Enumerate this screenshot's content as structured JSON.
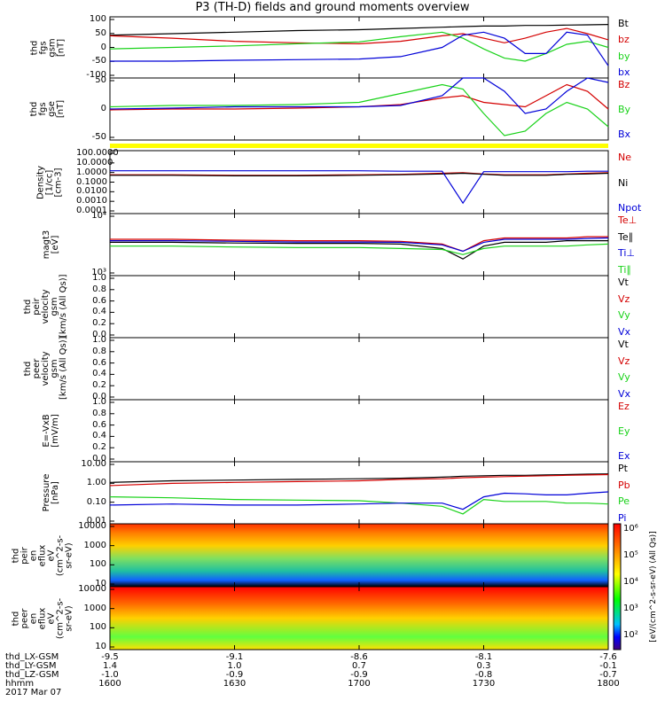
{
  "title": "P3 (TH-D) fields and ground moments overview",
  "x_axis": {
    "ticks_x": [
      1600,
      1630,
      1700,
      1730,
      1800
    ],
    "rows": [
      {
        "label": "thd_LX-GSM",
        "values": [
          "-9.5",
          "-9.1",
          "-8.6",
          "-8.1",
          "-7.6"
        ]
      },
      {
        "label": "thd_LY-GSM",
        "values": [
          "1.4",
          "1.0",
          "0.7",
          "0.3",
          "-0.1"
        ]
      },
      {
        "label": "thd_LZ-GSM",
        "values": [
          "-1.0",
          "-0.9",
          "-0.9",
          "-0.8",
          "-0.7"
        ]
      },
      {
        "label": "hhmm",
        "values": [
          "1600",
          "1630",
          "1700",
          "1730",
          "1800"
        ]
      }
    ],
    "date": "2017 Mar 07"
  },
  "colors": {
    "black": "#000000",
    "red": "#d40000",
    "green": "#19d219",
    "blue": "#0000d8",
    "yellow": "#ffff00"
  },
  "panels": [
    {
      "id": "fgs_gsm",
      "ylabel": "thd\nfgs\ngsm\n[nT]",
      "ticks": [
        "100",
        "50",
        "0",
        "-50",
        "-100"
      ],
      "legend": [
        {
          "text": "Bt",
          "color": "black"
        },
        {
          "text": "bz",
          "color": "red"
        },
        {
          "text": "by",
          "color": "green"
        },
        {
          "text": "bx",
          "color": "blue"
        }
      ]
    },
    {
      "id": "fgs_gse",
      "ylabel": "thd\nfgs\ngse\n[nT]",
      "ticks": [
        "50",
        "0",
        "-50"
      ],
      "legend": [
        {
          "text": "Bz",
          "color": "red"
        },
        {
          "text": "By",
          "color": "green"
        },
        {
          "text": "Bx",
          "color": "blue"
        }
      ]
    },
    {
      "id": "density",
      "ylabel": "Density\n[1/cc]\n[cm-3]",
      "ticks": [
        "100.0000",
        "10.0000",
        "1.0000",
        "0.1000",
        "0.0100",
        "0.0010",
        "0.0001"
      ],
      "legend": [
        {
          "text": "Ne",
          "color": "red"
        },
        {
          "text": "Ni",
          "color": "black"
        },
        {
          "text": "Npot",
          "color": "blue"
        }
      ]
    },
    {
      "id": "temp",
      "ylabel": "magt3\n[eV]",
      "ticks": [
        "10⁴",
        "10³"
      ],
      "legend": [
        {
          "text": "Te⊥",
          "color": "red"
        },
        {
          "text": "Te∥",
          "color": "black"
        },
        {
          "text": "Ti⊥",
          "color": "blue"
        },
        {
          "text": "Ti∥",
          "color": "green"
        }
      ]
    },
    {
      "id": "peir_vel",
      "ylabel": "thd\npeir\nvelocity\ngsm\n[km/s (All Qs)]",
      "ticks": [
        "1.0",
        "0.8",
        "0.6",
        "0.4",
        "0.2",
        "0.0"
      ],
      "legend": [
        {
          "text": "Vt",
          "color": "black"
        },
        {
          "text": "Vz",
          "color": "red"
        },
        {
          "text": "Vy",
          "color": "green"
        },
        {
          "text": "Vx",
          "color": "blue"
        }
      ]
    },
    {
      "id": "peer_vel",
      "ylabel": "thd\npeer\nvelocity\ngsm\n[km/s (All Qs)]",
      "ticks": [
        "1.0",
        "0.8",
        "0.6",
        "0.4",
        "0.2",
        "0.0"
      ],
      "legend": [
        {
          "text": "Vt",
          "color": "black"
        },
        {
          "text": "Vz",
          "color": "red"
        },
        {
          "text": "Vy",
          "color": "green"
        },
        {
          "text": "Vx",
          "color": "blue"
        }
      ]
    },
    {
      "id": "efield",
      "ylabel": "E=-VxB\n[mV/m]",
      "ticks": [
        "1.0",
        "0.8",
        "0.6",
        "0.4",
        "0.2",
        "0.0"
      ],
      "legend": [
        {
          "text": "Ez",
          "color": "red"
        },
        {
          "text": "Ey",
          "color": "green"
        },
        {
          "text": "Ex",
          "color": "blue"
        }
      ]
    },
    {
      "id": "pressure",
      "ylabel": "Pressure\n[nPa]",
      "ticks": [
        "10.00",
        "1.00",
        "0.10",
        "0.01"
      ],
      "legend": [
        {
          "text": "Pt",
          "color": "black"
        },
        {
          "text": "Pb",
          "color": "red"
        },
        {
          "text": "Pe",
          "color": "green"
        },
        {
          "text": "Pi",
          "color": "blue"
        }
      ]
    },
    {
      "id": "peir_en",
      "ylabel": "thd\npeir\nen\neflux\neV\n(cm^2-s-\nsr-eV)",
      "ticks": [
        "10000",
        "1000",
        "100",
        "10"
      ]
    },
    {
      "id": "peer_en",
      "ylabel": "thd\npeer\nen\neflux\neV\n(cm^2-s-\nsr-eV)",
      "ticks": [
        "10000",
        "1000",
        "100",
        "10"
      ]
    }
  ],
  "colorbar": {
    "label": "[eV/(cm^2-s-sr-eV) (All Qs)]",
    "ticks": [
      "10⁶",
      "10⁵",
      "10⁴",
      "10³",
      "10²"
    ]
  },
  "chart_data": {
    "type": "line",
    "title": "P3 (TH-D) fields and ground moments overview",
    "x": [
      1600,
      1615,
      1630,
      1645,
      1700,
      1710,
      1720,
      1725,
      1730,
      1735,
      1740,
      1745,
      1750,
      1755,
      1800
    ],
    "panels": [
      {
        "id": "fgs_gsm",
        "ylim": [
          -100,
          100
        ],
        "series": [
          {
            "name": "Bt",
            "color": "black",
            "values": [
              40,
              45,
              50,
              55,
              58,
              62,
              66,
              68,
              70,
              70,
              72,
              72,
              73,
              74,
              75
            ]
          },
          {
            "name": "bz",
            "color": "red",
            "values": [
              38,
              30,
              20,
              15,
              12,
              20,
              38,
              45,
              30,
              15,
              30,
              50,
              62,
              45,
              25
            ]
          },
          {
            "name": "by",
            "color": "green",
            "values": [
              -5,
              0,
              5,
              12,
              18,
              35,
              50,
              30,
              -5,
              -35,
              -45,
              -20,
              10,
              20,
              0
            ]
          },
          {
            "name": "bx",
            "color": "blue",
            "values": [
              -45,
              -45,
              -42,
              -40,
              -38,
              -30,
              0,
              40,
              50,
              30,
              -20,
              -20,
              50,
              40,
              -60
            ]
          }
        ]
      },
      {
        "id": "fgs_gse",
        "ylim": [
          -70,
          70
        ],
        "series": [
          {
            "name": "Bz",
            "color": "red",
            "values": [
              -2,
              0,
              0,
              2,
              5,
              10,
              25,
              30,
              15,
              10,
              5,
              30,
              55,
              40,
              0
            ]
          },
          {
            "name": "By",
            "color": "green",
            "values": [
              5,
              8,
              8,
              10,
              15,
              35,
              55,
              45,
              -10,
              -60,
              -50,
              -10,
              15,
              0,
              -40
            ]
          },
          {
            "name": "Bx",
            "color": "blue",
            "values": [
              0,
              2,
              5,
              5,
              5,
              8,
              30,
              70,
              95,
              40,
              -10,
              0,
              40,
              95,
              60
            ]
          }
        ]
      },
      {
        "id": "density",
        "log": true,
        "ylim": [
          0.0001,
          100
        ],
        "series": [
          {
            "name": "Ne",
            "color": "red",
            "values": [
              0.5,
              0.5,
              0.45,
              0.45,
              0.5,
              0.55,
              0.7,
              0.8,
              0.6,
              0.5,
              0.5,
              0.5,
              0.6,
              0.7,
              0.8
            ]
          },
          {
            "name": "Ni",
            "color": "black",
            "values": [
              0.45,
              0.45,
              0.4,
              0.4,
              0.45,
              0.5,
              0.6,
              0.7,
              0.55,
              0.45,
              0.45,
              0.45,
              0.55,
              0.6,
              0.7
            ]
          },
          {
            "name": "Npot",
            "color": "blue",
            "values": [
              1.2,
              1.2,
              1.2,
              1.2,
              1.2,
              1.1,
              1.1,
              0.001,
              1.0,
              1.0,
              1.0,
              1.0,
              1.0,
              1.1,
              1.1
            ]
          }
        ]
      },
      {
        "id": "temp",
        "log": true,
        "ylim": [
          500,
          30000
        ],
        "series": [
          {
            "name": "Te⊥",
            "color": "red",
            "values": [
              5500,
              5500,
              5200,
              5000,
              5000,
              4800,
              4000,
              2500,
              5000,
              6000,
              6000,
              6000,
              6000,
              6500,
              6500
            ]
          },
          {
            "name": "Te∥",
            "color": "black",
            "values": [
              4500,
              4500,
              4300,
              4200,
              4200,
              4000,
              3000,
              1500,
              3500,
              4500,
              4500,
              4500,
              5000,
              5000,
              5000
            ]
          },
          {
            "name": "Ti⊥",
            "color": "blue",
            "values": [
              5000,
              5000,
              4800,
              4600,
              4600,
              4500,
              3800,
              2500,
              4500,
              5500,
              5500,
              5500,
              5500,
              5800,
              6000
            ]
          },
          {
            "name": "Ti∥",
            "color": "green",
            "values": [
              3500,
              3500,
              3300,
              3200,
              3200,
              3000,
              2800,
              2000,
              3000,
              3500,
              3500,
              3500,
              3500,
              3800,
              4000
            ]
          }
        ]
      },
      {
        "id": "peir_vel",
        "ylim": [
          0,
          1
        ],
        "series": []
      },
      {
        "id": "peer_vel",
        "ylim": [
          0,
          1
        ],
        "series": []
      },
      {
        "id": "efield",
        "ylim": [
          0,
          1
        ],
        "series": []
      },
      {
        "id": "pressure",
        "log": true,
        "ylim": [
          0.01,
          10
        ],
        "series": [
          {
            "name": "Pt",
            "color": "black",
            "values": [
              1.0,
              1.2,
              1.3,
              1.4,
              1.5,
              1.6,
              1.8,
              2.0,
              2.1,
              2.2,
              2.2,
              2.3,
              2.4,
              2.5,
              2.6
            ]
          },
          {
            "name": "Pb",
            "color": "red",
            "values": [
              0.7,
              0.9,
              1.0,
              1.1,
              1.2,
              1.4,
              1.5,
              1.7,
              1.8,
              1.9,
              2.0,
              2.1,
              2.2,
              2.3,
              2.4
            ]
          },
          {
            "name": "Pe",
            "color": "green",
            "values": [
              0.2,
              0.18,
              0.15,
              0.14,
              0.13,
              0.1,
              0.07,
              0.03,
              0.15,
              0.12,
              0.12,
              0.12,
              0.1,
              0.1,
              0.09
            ]
          },
          {
            "name": "Pi",
            "color": "blue",
            "values": [
              0.08,
              0.09,
              0.08,
              0.08,
              0.09,
              0.1,
              0.1,
              0.05,
              0.2,
              0.3,
              0.28,
              0.25,
              0.25,
              0.3,
              0.35
            ]
          }
        ]
      }
    ]
  }
}
